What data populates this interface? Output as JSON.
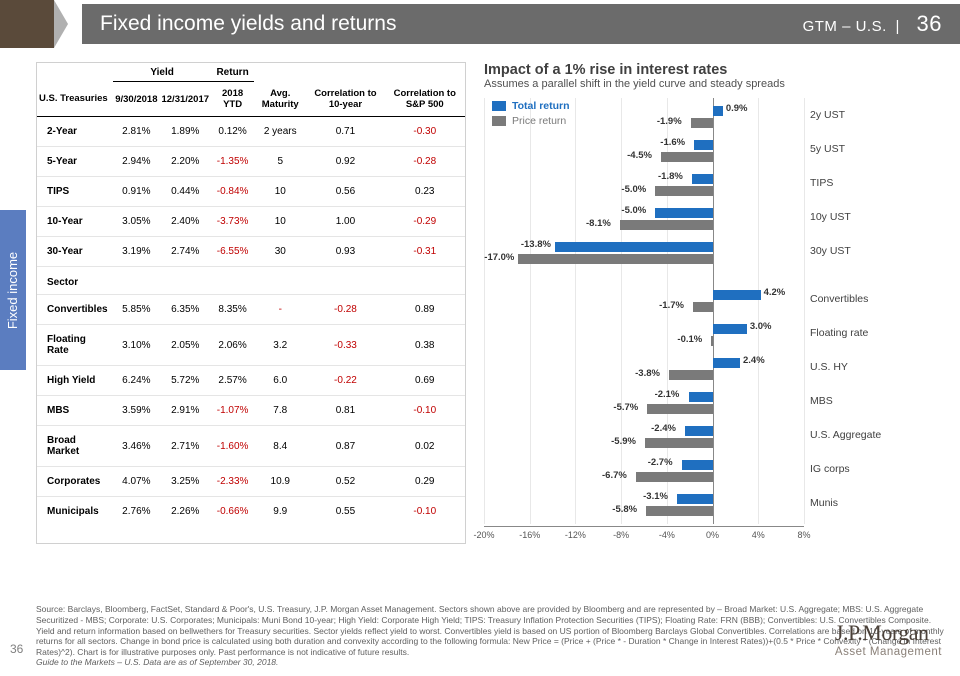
{
  "header": {
    "title": "Fixed income yields and returns",
    "right_prefix": "GTM – U.S.",
    "page": "36"
  },
  "side_tab": "Fixed income",
  "table": {
    "group_headers": [
      "",
      "Yield",
      "",
      "Return",
      "",
      "",
      ""
    ],
    "columns": [
      "U.S. Treasuries",
      "9/30/2018",
      "12/31/2017",
      "2018 YTD",
      "Avg. Maturity",
      "Correlation to 10-year",
      "Correlation to S&P 500"
    ],
    "rows_treasury": [
      {
        "label": "2-Year",
        "v": [
          "2.81%",
          "1.89%",
          "0.12%",
          "2 years",
          "0.71",
          "-0.30"
        ]
      },
      {
        "label": "5-Year",
        "v": [
          "2.94%",
          "2.20%",
          "-1.35%",
          "5",
          "0.92",
          "-0.28"
        ]
      },
      {
        "label": "TIPS",
        "v": [
          "0.91%",
          "0.44%",
          "-0.84%",
          "10",
          "0.56",
          "0.23"
        ]
      },
      {
        "label": "10-Year",
        "v": [
          "3.05%",
          "2.40%",
          "-3.73%",
          "10",
          "1.00",
          "-0.29"
        ]
      },
      {
        "label": "30-Year",
        "v": [
          "3.19%",
          "2.74%",
          "-6.55%",
          "30",
          "0.93",
          "-0.31"
        ]
      }
    ],
    "section2": "Sector",
    "rows_sector": [
      {
        "label": "Convertibles",
        "v": [
          "5.85%",
          "6.35%",
          "8.35%",
          "-",
          "-0.28",
          "0.89"
        ]
      },
      {
        "label": "Floating Rate",
        "v": [
          "3.10%",
          "2.05%",
          "2.06%",
          "3.2",
          "-0.33",
          "0.38"
        ]
      },
      {
        "label": "High Yield",
        "v": [
          "6.24%",
          "5.72%",
          "2.57%",
          "6.0",
          "-0.22",
          "0.69"
        ]
      },
      {
        "label": "MBS",
        "v": [
          "3.59%",
          "2.91%",
          "-1.07%",
          "7.8",
          "0.81",
          "-0.10"
        ]
      },
      {
        "label": "Broad Market",
        "v": [
          "3.46%",
          "2.71%",
          "-1.60%",
          "8.4",
          "0.87",
          "0.02"
        ]
      },
      {
        "label": "Corporates",
        "v": [
          "4.07%",
          "3.25%",
          "-2.33%",
          "10.9",
          "0.52",
          "0.29"
        ]
      },
      {
        "label": "Municipals",
        "v": [
          "2.76%",
          "2.26%",
          "-0.66%",
          "9.9",
          "0.55",
          "-0.10"
        ]
      }
    ]
  },
  "chart": {
    "title": "Impact of a 1% rise in interest rates",
    "subtitle": "Assumes a parallel shift in the yield curve and steady spreads",
    "legend": {
      "total": "Total return",
      "price": "Price return"
    },
    "colors": {
      "total": "#1f6fc0",
      "price": "#7a7a7a",
      "grid": "#e8e8e8",
      "zero": "#888888"
    },
    "x_min": -20,
    "x_max": 8,
    "x_ticks": [
      -20,
      -16,
      -12,
      -8,
      -4,
      0,
      4,
      8
    ],
    "x_tick_labels": [
      "-20%",
      "-16%",
      "-12%",
      "-8%",
      "-4%",
      "0%",
      "4%",
      "8%"
    ],
    "groups": [
      [
        {
          "label": "2y UST",
          "total": 0.9,
          "price": -1.9,
          "tlabel": "0.9%",
          "plabel": "-1.9%"
        },
        {
          "label": "5y UST",
          "total": -1.6,
          "price": -4.5,
          "tlabel": "-1.6%",
          "plabel": "-4.5%"
        },
        {
          "label": "TIPS",
          "total": -1.8,
          "price": -5.0,
          "tlabel": "-1.8%",
          "plabel": "-5.0%"
        },
        {
          "label": "10y UST",
          "total": -5.0,
          "price": -8.1,
          "tlabel": "-5.0%",
          "plabel": "-8.1%"
        },
        {
          "label": "30y UST",
          "total": -13.8,
          "price": -17.0,
          "tlabel": "-13.8%",
          "plabel": "-17.0%"
        }
      ],
      [
        {
          "label": "Convertibles",
          "total": 4.2,
          "price": -1.7,
          "tlabel": "4.2%",
          "plabel": "-1.7%"
        },
        {
          "label": "Floating rate",
          "total": 3.0,
          "price": -0.1,
          "tlabel": "3.0%",
          "plabel": "-0.1%"
        },
        {
          "label": "U.S. HY",
          "total": 2.4,
          "price": -3.8,
          "tlabel": "2.4%",
          "plabel": "-3.8%"
        },
        {
          "label": "MBS",
          "total": -2.1,
          "price": -5.7,
          "tlabel": "-2.1%",
          "plabel": "-5.7%"
        },
        {
          "label": "U.S. Aggregate",
          "total": -2.4,
          "price": -5.9,
          "tlabel": "-2.4%",
          "plabel": "-5.9%"
        },
        {
          "label": "IG corps",
          "total": -2.7,
          "price": -6.7,
          "tlabel": "-2.7%",
          "plabel": "-6.7%"
        },
        {
          "label": "Munis",
          "total": -3.1,
          "price": -5.8,
          "tlabel": "-3.1%",
          "plabel": "-5.8%"
        }
      ]
    ]
  },
  "footer": {
    "source": "Source: Barclays, Bloomberg, FactSet, Standard & Poor's, U.S. Treasury, J.P. Morgan Asset Management. Sectors shown above are provided by Bloomberg and are represented by – Broad Market: U.S. Aggregate; MBS: U.S. Aggregate Securitized - MBS; Corporate: U.S. Corporates; Municipals: Muni Bond 10-year; High Yield: Corporate High Yield; TIPS: Treasury Inflation Protection Securities (TIPS); Floating Rate: FRN (BBB); Convertibles: U.S. Convertibles Composite. Yield and return information based on bellwethers for Treasury securities. Sector yields reflect yield to worst. Convertibles yield is based on US portion of Bloomberg Barclays Global Convertibles. Correlations are based on 10-years of monthly returns for all sectors. Change in bond price is calculated using both duration and convexity according to the following formula: New Price = (Price + (Price * - Duration * Change in Interest Rates))+(0.5 * Price * Convexity * (Change in Interest Rates)^2). Chart is for illustrative purposes only. Past performance is not indicative of future results.",
    "guide": "Guide to the Markets – U.S. Data are as of September 30, 2018."
  },
  "page_num": "36",
  "logo": {
    "line1": "J.P.Morgan",
    "line2": "Asset Management"
  }
}
